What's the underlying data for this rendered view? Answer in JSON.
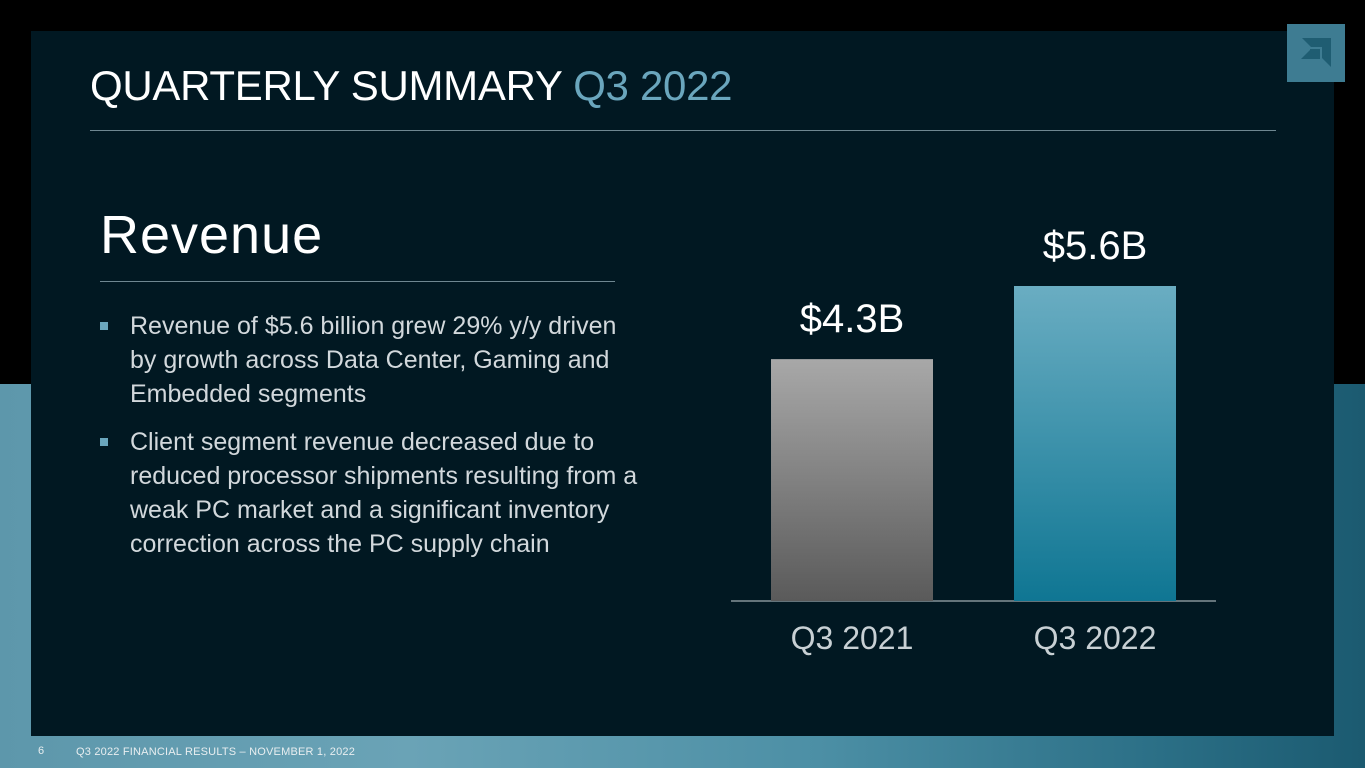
{
  "slide": {
    "title_main": "QUARTERLY SUMMARY",
    "title_accent": "Q3 2022",
    "logo_icon": "amd-arrow-logo-icon",
    "section_heading": "Revenue",
    "bullets": [
      "Revenue of $5.6 billion grew 29% y/y driven by growth across Data Center, Gaming and Embedded segments",
      "Client segment revenue decreased due to reduced processor shipments resulting from a weak PC market and a significant inventory correction across the PC supply chain"
    ],
    "bullet_marker_color": "#6aa6bd"
  },
  "chart_data": {
    "type": "bar",
    "categories": [
      "Q3 2021",
      "Q3 2022"
    ],
    "values": [
      4.3,
      5.6
    ],
    "data_labels": [
      "$4.3B",
      "$5.6B"
    ],
    "title": "",
    "xlabel": "",
    "ylabel": "",
    "ylim": [
      0,
      6.4
    ],
    "grid": false,
    "bar_colors": [
      [
        "#a8a8a8",
        "#5a5a5a"
      ],
      [
        "#6aadc2",
        "#0f7693"
      ]
    ]
  },
  "footer": {
    "page_number": "6",
    "text": "Q3 2022 FINANCIAL RESULTS – NOVEMBER 1, 2022"
  }
}
